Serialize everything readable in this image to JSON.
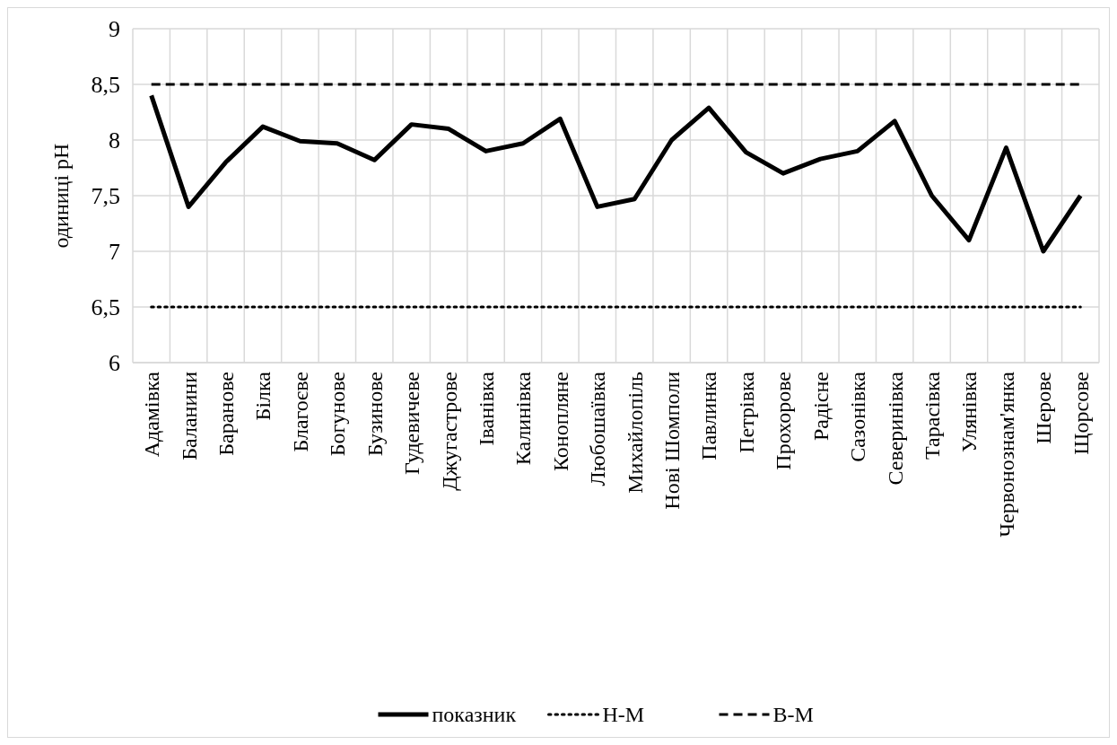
{
  "chart_data": {
    "type": "line",
    "ylabel": "одиниці pH",
    "categories": [
      "Адамівка",
      "Баланини",
      "Баранове",
      "Білка",
      "Благоєве",
      "Богунове",
      "Бузинове",
      "Гудевичеве",
      "Джугастрове",
      "Іванівка",
      "Калинівка",
      "Коноплянe",
      "Любошаївка",
      "Михайлопіль",
      "Нові Шомполи",
      "Павлинка",
      "Петрівка",
      "Прохорове",
      "Радісне",
      "Сазонівка",
      "Северинівка",
      "Тарасівка",
      "Улянівка",
      "Червонознам'янка",
      "Шерове",
      "Щорсове"
    ],
    "series": [
      {
        "name": "показник",
        "color": "#000000",
        "line_style": "solid",
        "values": [
          8.4,
          7.4,
          7.8,
          8.12,
          7.99,
          7.97,
          7.82,
          8.14,
          8.1,
          7.9,
          7.97,
          8.19,
          7.4,
          7.47,
          8.0,
          8.29,
          7.89,
          7.7,
          7.83,
          7.9,
          8.17,
          7.5,
          7.1,
          7.93,
          7.0,
          7.5
        ]
      },
      {
        "name": "Н-М",
        "color": "#000000",
        "line_style": "dotted",
        "values": [
          6.5,
          6.5,
          6.5,
          6.5,
          6.5,
          6.5,
          6.5,
          6.5,
          6.5,
          6.5,
          6.5,
          6.5,
          6.5,
          6.5,
          6.5,
          6.5,
          6.5,
          6.5,
          6.5,
          6.5,
          6.5,
          6.5,
          6.5,
          6.5,
          6.5,
          6.5
        ]
      },
      {
        "name": "В-М",
        "color": "#000000",
        "line_style": "dashed",
        "values": [
          8.5,
          8.5,
          8.5,
          8.5,
          8.5,
          8.5,
          8.5,
          8.5,
          8.5,
          8.5,
          8.5,
          8.5,
          8.5,
          8.5,
          8.5,
          8.5,
          8.5,
          8.5,
          8.5,
          8.5,
          8.5,
          8.5,
          8.5,
          8.5,
          8.5,
          8.5
        ]
      }
    ],
    "ylim": [
      6,
      9
    ],
    "yticks": [
      6,
      {
        "value": 6.5,
        "label": "6,5"
      },
      7,
      {
        "value": 7.5,
        "label": "7,5"
      },
      8,
      {
        "value": 8.5,
        "label": "8,5"
      },
      9
    ],
    "grid": true,
    "legend": "bottom",
    "marker": "none"
  }
}
